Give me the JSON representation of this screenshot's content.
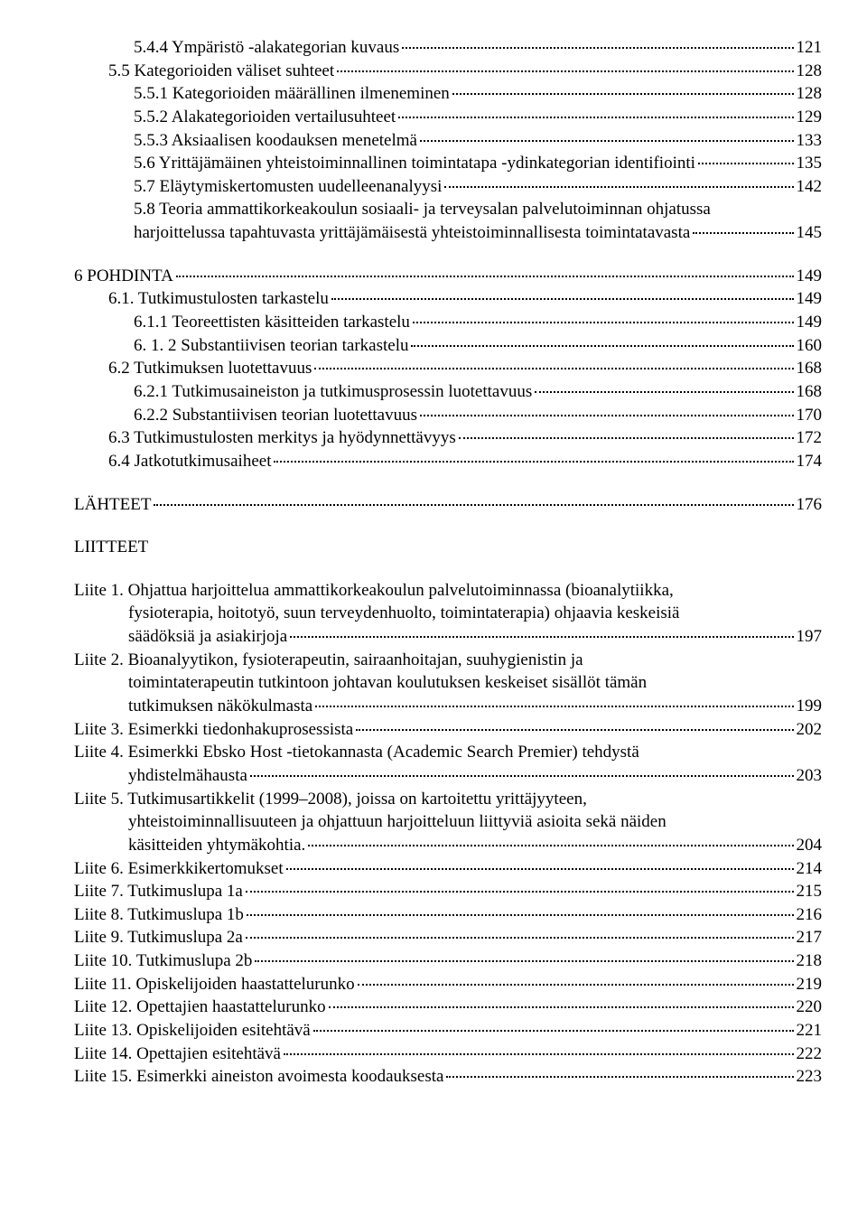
{
  "entries": [
    {
      "type": "toc",
      "indent": 2,
      "label": "5.4.4 Ympäristö -alakategorian kuvaus",
      "page": "121"
    },
    {
      "type": "toc",
      "indent": 1,
      "label": "5.5 Kategorioiden väliset suhteet",
      "page": "128"
    },
    {
      "type": "toc",
      "indent": 2,
      "label": "5.5.1 Kategorioiden määrällinen ilmeneminen",
      "page": "128"
    },
    {
      "type": "toc",
      "indent": 2,
      "label": "5.5.2 Alakategorioiden vertailusuhteet",
      "page": "129"
    },
    {
      "type": "toc",
      "indent": 2,
      "label": "5.5.3 Aksiaalisen koodauksen menetelmä",
      "page": "133"
    },
    {
      "type": "toc",
      "indent": 2,
      "label": "5.6 Yrittäjämäinen yhteistoiminnallinen toimintatapa -ydinkategorian identifiointi",
      "page": "135"
    },
    {
      "type": "toc",
      "indent": 2,
      "label": "5.7 Eläytymiskertomusten uudelleenanalyysi",
      "page": "142"
    },
    {
      "type": "wrap",
      "indent": 2,
      "pre": [
        "5.8 Teoria ammattikorkeakoulun sosiaali- ja terveysalan palvelutoiminnan ohjatussa"
      ],
      "last": "harjoittelussa tapahtuvasta yrittäjämäisestä yhteistoiminnallisesta toimintatavasta",
      "page": "145"
    },
    {
      "type": "toc",
      "indent": 0,
      "gap": true,
      "label": "6 POHDINTA",
      "page": "149"
    },
    {
      "type": "toc",
      "indent": 1,
      "label": "6.1. Tutkimustulosten tarkastelu",
      "page": "149"
    },
    {
      "type": "toc",
      "indent": 2,
      "label": "6.1.1 Teoreettisten käsitteiden tarkastelu",
      "page": "149"
    },
    {
      "type": "toc",
      "indent": 2,
      "label": "6. 1. 2 Substantiivisen teorian tarkastelu",
      "page": "160"
    },
    {
      "type": "toc",
      "indent": 1,
      "label": "6.2 Tutkimuksen luotettavuus",
      "page": "168"
    },
    {
      "type": "toc",
      "indent": 2,
      "label": "6.2.1 Tutkimusaineiston ja tutkimusprosessin luotettavuus",
      "page": "168"
    },
    {
      "type": "toc",
      "indent": 2,
      "label": "6.2.2 Substantiivisen teorian luotettavuus",
      "page": "170"
    },
    {
      "type": "toc",
      "indent": 1,
      "label": "6.3 Tutkimustulosten merkitys ja hyödynnettävyys",
      "page": "172"
    },
    {
      "type": "toc",
      "indent": 1,
      "label": "6.4 Jatkotutkimusaiheet",
      "page": "174"
    },
    {
      "type": "toc",
      "indent": 0,
      "gap": true,
      "label": "LÄHTEET",
      "page": "176"
    },
    {
      "type": "heading",
      "gap": true,
      "text": "LIITTEET"
    },
    {
      "type": "hang",
      "gap": true,
      "pre": [
        "Liite 1. Ohjattua harjoittelua ammattikorkeakoulun palvelutoiminnassa  (bioanalytiikka,",
        "fysioterapia, hoitotyö, suun terveydenhuolto, toimintaterapia) ohjaavia keskeisiä"
      ],
      "last": "säädöksiä ja asiakirjoja",
      "page": "197"
    },
    {
      "type": "hang",
      "pre": [
        "Liite 2. Bioanalyytikon, fysioterapeutin, sairaanhoitajan, suuhygienistin ja",
        "toimintaterapeutin tutkintoon johtavan koulutuksen keskeiset sisällöt tämän"
      ],
      "last": "tutkimuksen näkökulmasta",
      "page": "199"
    },
    {
      "type": "toc",
      "indent": 0,
      "label": "Liite 3. Esimerkki tiedonhakuprosessista",
      "page": "202"
    },
    {
      "type": "hang",
      "pre": [
        "Liite 4. Esimerkki Ebsko Host -tietokannasta  (Academic Search Premier) tehdystä"
      ],
      "last": "yhdistelmähausta",
      "page": "203"
    },
    {
      "type": "hang",
      "pre": [
        "Liite 5. Tutkimusartikkelit (1999–2008), joissa on kartoitettu yrittäjyyteen,",
        "yhteistoiminnallisuuteen ja ohjattuun harjoitteluun liittyviä asioita sekä näiden"
      ],
      "last": "käsitteiden yhtymäkohtia.",
      "page": "204"
    },
    {
      "type": "toc",
      "indent": 0,
      "label": "Liite 6. Esimerkkikertomukset",
      "page": "214"
    },
    {
      "type": "toc",
      "indent": 0,
      "label": "Liite 7. Tutkimuslupa 1a",
      "page": "215"
    },
    {
      "type": "toc",
      "indent": 0,
      "label": "Liite 8. Tutkimuslupa 1b",
      "page": "216"
    },
    {
      "type": "toc",
      "indent": 0,
      "label": "Liite 9. Tutkimuslupa 2a",
      "page": "217"
    },
    {
      "type": "toc",
      "indent": 0,
      "label": "Liite 10. Tutkimuslupa 2b",
      "page": "218"
    },
    {
      "type": "toc",
      "indent": 0,
      "label": "Liite 11. Opiskelijoiden haastattelurunko",
      "page": "219"
    },
    {
      "type": "toc",
      "indent": 0,
      "label": "Liite 12. Opettajien haastattelurunko",
      "page": "220"
    },
    {
      "type": "toc",
      "indent": 0,
      "label": "Liite 13. Opiskelijoiden esitehtävä",
      "page": "221"
    },
    {
      "type": "toc",
      "indent": 0,
      "label": "Liite 14. Opettajien esitehtävä",
      "page": "222"
    },
    {
      "type": "toc",
      "indent": 0,
      "label": "Liite 15. Esimerkki aineiston avoimesta koodauksesta",
      "page": "223"
    }
  ]
}
